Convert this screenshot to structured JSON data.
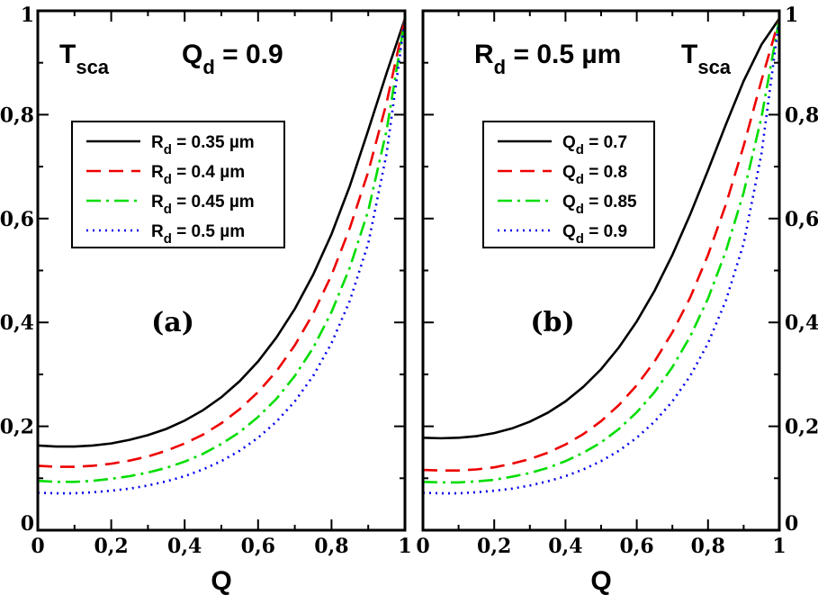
{
  "chart_data": [
    {
      "type": "line",
      "panel_label": "(a)",
      "annotation": {
        "quantity": "T",
        "subscript": "sca",
        "param_symbol": "Q",
        "param_sub": "d",
        "param_value": " = 0.9"
      },
      "xlabel": "Q",
      "xlim": [
        0,
        1
      ],
      "ylim": [
        0,
        1
      ],
      "x_ticks": [
        "0",
        "0,2",
        "0,4",
        "0,6",
        "0,8",
        "1"
      ],
      "y_ticks": [
        "0",
        "0,2",
        "0,4",
        "0,6",
        "0,8",
        "1"
      ],
      "y_ticks_side": "left",
      "legend_position": "upper-left",
      "x": [
        0,
        0.05,
        0.1,
        0.15,
        0.2,
        0.25,
        0.3,
        0.35,
        0.4,
        0.45,
        0.5,
        0.55,
        0.6,
        0.65,
        0.7,
        0.75,
        0.8,
        0.85,
        0.9,
        0.95,
        1.0
      ],
      "series": [
        {
          "name": "R_d = 0.35 µm",
          "label_symbol": "R",
          "label_sub": "d",
          "label_rest": " = 0.35 µm",
          "color": "#000000",
          "dash": "",
          "values": [
            0.163,
            0.161,
            0.161,
            0.163,
            0.167,
            0.174,
            0.183,
            0.195,
            0.211,
            0.231,
            0.256,
            0.287,
            0.325,
            0.371,
            0.426,
            0.492,
            0.57,
            0.663,
            0.77,
            0.88,
            0.985
          ]
        },
        {
          "name": "R_d = 0.4 µm",
          "label_symbol": "R",
          "label_sub": "d",
          "label_rest": " = 0.4 µm",
          "color": "#ee0000",
          "dash": "16,9",
          "values": [
            0.124,
            0.122,
            0.122,
            0.124,
            0.128,
            0.134,
            0.142,
            0.153,
            0.167,
            0.184,
            0.206,
            0.233,
            0.266,
            0.306,
            0.356,
            0.417,
            0.491,
            0.582,
            0.69,
            0.823,
            0.985
          ]
        },
        {
          "name": "R_d = 0.45 µm",
          "label_symbol": "R",
          "label_sub": "d",
          "label_rest": " = 0.45 µm",
          "color": "#00dd00",
          "dash": "16,6,3,6",
          "values": [
            0.095,
            0.093,
            0.093,
            0.095,
            0.099,
            0.104,
            0.111,
            0.12,
            0.132,
            0.147,
            0.166,
            0.189,
            0.218,
            0.253,
            0.297,
            0.351,
            0.42,
            0.506,
            0.615,
            0.77,
            0.985
          ]
        },
        {
          "name": "R_d = 0.5 µm",
          "label_symbol": "R",
          "label_sub": "d",
          "label_rest": " = 0.5 µm",
          "color": "#0000ee",
          "dash": "2,5",
          "values": [
            0.072,
            0.071,
            0.071,
            0.073,
            0.076,
            0.08,
            0.086,
            0.094,
            0.104,
            0.117,
            0.133,
            0.153,
            0.178,
            0.209,
            0.248,
            0.297,
            0.36,
            0.442,
            0.552,
            0.725,
            0.985
          ]
        }
      ]
    },
    {
      "type": "line",
      "panel_label": "(b)",
      "annotation": {
        "param_symbol": "R",
        "param_sub": "d",
        "param_value": " = 0.5 µm",
        "quantity": "T",
        "subscript": "sca"
      },
      "xlabel": "Q",
      "xlim": [
        0,
        1
      ],
      "ylim": [
        0,
        1
      ],
      "x_ticks": [
        "0",
        "0,2",
        "0,4",
        "0,6",
        "0,8",
        "1"
      ],
      "y_ticks": [
        "0",
        "0,2",
        "0,4",
        "0,6",
        "0,8",
        "1"
      ],
      "y_ticks_side": "right",
      "legend_position": "upper-left",
      "x": [
        0,
        0.05,
        0.1,
        0.15,
        0.2,
        0.25,
        0.3,
        0.35,
        0.4,
        0.45,
        0.5,
        0.55,
        0.6,
        0.65,
        0.7,
        0.75,
        0.8,
        0.85,
        0.9,
        0.95,
        1.0
      ],
      "series": [
        {
          "name": "Q_d = 0.7",
          "label_symbol": "Q",
          "label_sub": "d",
          "label_rest": " = 0.7",
          "color": "#000000",
          "dash": "",
          "values": [
            0.178,
            0.177,
            0.178,
            0.181,
            0.187,
            0.196,
            0.209,
            0.226,
            0.248,
            0.276,
            0.31,
            0.352,
            0.402,
            0.461,
            0.53,
            0.608,
            0.693,
            0.781,
            0.865,
            0.935,
            0.985
          ]
        },
        {
          "name": "Q_d = 0.8",
          "label_symbol": "Q",
          "label_sub": "d",
          "label_rest": " = 0.8",
          "color": "#ee0000",
          "dash": "16,9",
          "values": [
            0.116,
            0.115,
            0.115,
            0.117,
            0.121,
            0.128,
            0.137,
            0.149,
            0.165,
            0.185,
            0.21,
            0.241,
            0.279,
            0.325,
            0.381,
            0.448,
            0.53,
            0.627,
            0.74,
            0.866,
            0.985
          ]
        },
        {
          "name": "Q_d = 0.85",
          "label_symbol": "Q",
          "label_sub": "d",
          "label_rest": " = 0.85",
          "color": "#00dd00",
          "dash": "16,6,3,6",
          "values": [
            0.093,
            0.092,
            0.092,
            0.094,
            0.097,
            0.103,
            0.11,
            0.12,
            0.133,
            0.149,
            0.169,
            0.195,
            0.227,
            0.266,
            0.314,
            0.373,
            0.446,
            0.537,
            0.65,
            0.795,
            0.985
          ]
        },
        {
          "name": "Q_d = 0.9",
          "label_symbol": "Q",
          "label_sub": "d",
          "label_rest": " = 0.9",
          "color": "#0000ee",
          "dash": "2,5",
          "values": [
            0.072,
            0.071,
            0.071,
            0.073,
            0.076,
            0.08,
            0.086,
            0.094,
            0.104,
            0.117,
            0.133,
            0.153,
            0.178,
            0.209,
            0.248,
            0.297,
            0.36,
            0.442,
            0.552,
            0.725,
            0.985
          ]
        }
      ]
    }
  ]
}
